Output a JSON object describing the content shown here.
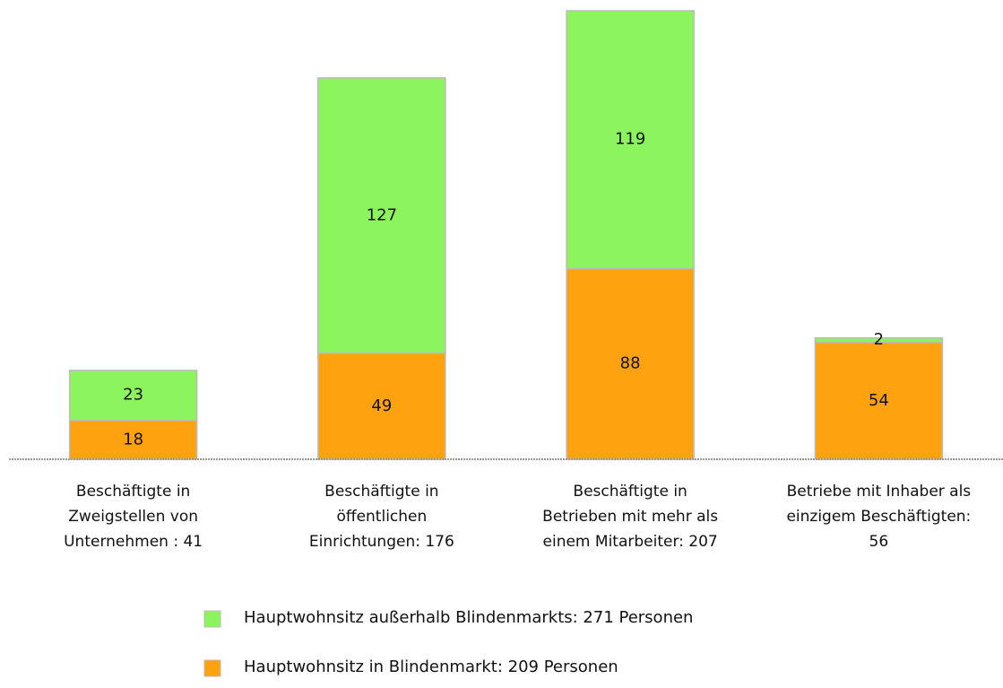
{
  "chart_data": {
    "type": "stacked_bar",
    "categories": [
      "Beschäftigte in Zweigstellen von Unternehmen : 41",
      "Beschäftigte in öffentlichen Einrichtungen: 176",
      "Beschäftigte in Betrieben mit mehr als einem Mitarbeiter: 207",
      "Betriebe mit Inhaber als einzigem Beschäftigten: 56"
    ],
    "series": [
      {
        "name": "Hauptwohnsitz in Blindenmarkt: 209 Personen",
        "color": "#ffa20f",
        "values": [
          18,
          49,
          88,
          54
        ]
      },
      {
        "name": "Hauptwohnsitz außerhalb Blindenmarkts: 271 Personen",
        "color": "#8cf55e",
        "values": [
          23,
          127,
          119,
          2
        ]
      }
    ],
    "legend": "bottom"
  }
}
